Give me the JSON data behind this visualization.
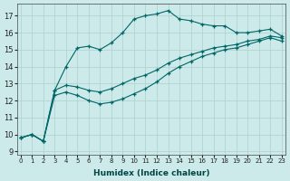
{
  "xlabel": "Humidex (Indice chaleur)",
  "bg_color": "#cdeaea",
  "line_color": "#006666",
  "grid_color": "#aed0d0",
  "xlim": [
    -0.3,
    23.3
  ],
  "ylim": [
    8.8,
    17.7
  ],
  "yticks": [
    9,
    10,
    11,
    12,
    13,
    14,
    15,
    16,
    17
  ],
  "xticks": [
    0,
    1,
    2,
    3,
    4,
    5,
    6,
    7,
    8,
    9,
    10,
    11,
    12,
    13,
    14,
    15,
    16,
    17,
    18,
    19,
    20,
    21,
    22,
    23
  ],
  "series1": [
    9.8,
    10.0,
    9.6,
    12.6,
    14.0,
    15.1,
    15.2,
    15.0,
    15.4,
    16.0,
    16.8,
    17.0,
    17.1,
    17.3,
    16.8,
    16.7,
    16.5,
    16.4,
    16.4,
    16.0,
    16.0,
    16.1,
    16.2,
    15.8
  ],
  "series2": [
    9.8,
    10.0,
    9.6,
    12.6,
    12.9,
    12.8,
    12.6,
    12.5,
    12.7,
    13.0,
    13.3,
    13.5,
    13.8,
    14.2,
    14.5,
    14.7,
    14.9,
    15.1,
    15.2,
    15.3,
    15.5,
    15.6,
    15.8,
    15.7
  ],
  "series3": [
    9.8,
    10.0,
    9.6,
    12.3,
    12.5,
    12.3,
    12.0,
    11.8,
    11.9,
    12.1,
    12.4,
    12.7,
    13.1,
    13.6,
    14.0,
    14.3,
    14.6,
    14.8,
    15.0,
    15.1,
    15.3,
    15.5,
    15.7,
    15.5
  ]
}
